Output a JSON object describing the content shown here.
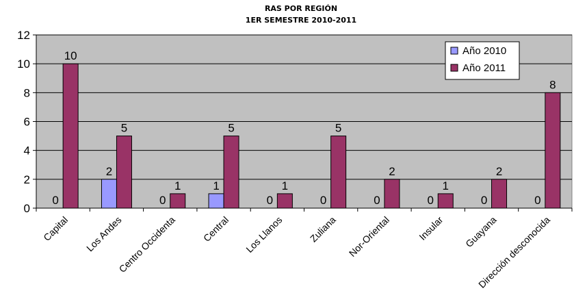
{
  "chart_data": {
    "type": "bar",
    "title": "RAS POR REGIÓN",
    "subtitle": "1ER SEMESTRE 2010-2011",
    "xlabel": "",
    "ylabel": "",
    "ylim": [
      0,
      12
    ],
    "yticks": [
      "0",
      "2",
      "4",
      "6",
      "8",
      "10",
      "12"
    ],
    "grid": true,
    "legend_position": "top-right",
    "categories": [
      "Capital",
      "Los Andes",
      "Centro Occidental",
      "Central",
      "Los Llanos",
      "Zuliana",
      "Nor-Oriental",
      "Insular",
      "Guayana",
      "Dirección desconocida"
    ],
    "category_labels_shown": [
      "Capital",
      "Los Andes",
      "Centro Occidenta",
      "Central",
      "Los Llanos",
      "Zuliana",
      "Nor-Oriental",
      "Insular",
      "Guayana",
      "Dirección desconocida"
    ],
    "series": [
      {
        "name": "Año 2010",
        "color": "#9999ff",
        "values": [
          0,
          2,
          0,
          1,
          0,
          0,
          0,
          0,
          0,
          0
        ]
      },
      {
        "name": "Año 2011",
        "color": "#993366",
        "values": [
          10,
          5,
          1,
          5,
          1,
          5,
          2,
          1,
          2,
          8
        ]
      }
    ],
    "plot_background": "#c0c0c0",
    "gridline_color": "#000000"
  }
}
